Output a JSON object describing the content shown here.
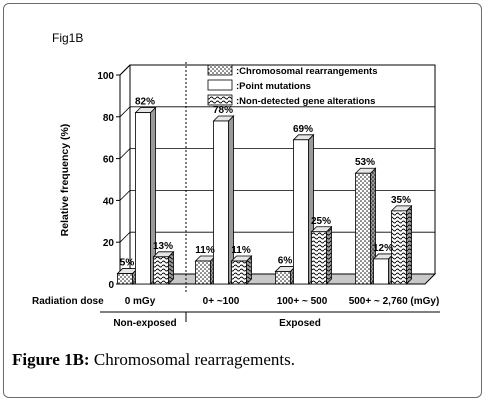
{
  "fig_label": "Fig1B",
  "caption": {
    "label": "Figure 1B:",
    "text": " Chromosomal rearragements."
  },
  "chart_data": {
    "type": "bar",
    "categories": [
      "0 mGy",
      "0+ ~100",
      "100+ ~ 500",
      "500+ ~ 2,760 (mGy)"
    ],
    "x_row_label": "Radiation dose",
    "groups": [
      {
        "label": "Non-exposed",
        "span": [
          0,
          0
        ]
      },
      {
        "label": "Exposed",
        "span": [
          1,
          3
        ]
      }
    ],
    "series": [
      {
        "name": ":Chromosomal rearrangements",
        "pattern": "dots",
        "values": [
          5,
          11,
          6,
          53
        ]
      },
      {
        "name": ":Point mutations",
        "pattern": "plain",
        "values": [
          82,
          78,
          69,
          12
        ]
      },
      {
        "name": ":Non-detected gene alterations",
        "pattern": "wave",
        "values": [
          13,
          11,
          25,
          35
        ]
      }
    ],
    "data_labels": [
      [
        "5%",
        "11%",
        "6%",
        "53%"
      ],
      [
        "82%",
        "78%",
        "69%",
        "12%"
      ],
      [
        "13%",
        "11%",
        "25%",
        "35%"
      ]
    ],
    "ylabel": "Relative frequency (%)",
    "yticks": [
      "0",
      "20",
      "40",
      "60",
      "80",
      "100"
    ],
    "ylim": [
      0,
      100
    ],
    "grid": true,
    "legend_position": "top-right",
    "colors": {
      "bar_fill": "#ffffff",
      "bar_side": "#9a9a9a",
      "pattern": "#000000",
      "grid": "#000000"
    }
  }
}
